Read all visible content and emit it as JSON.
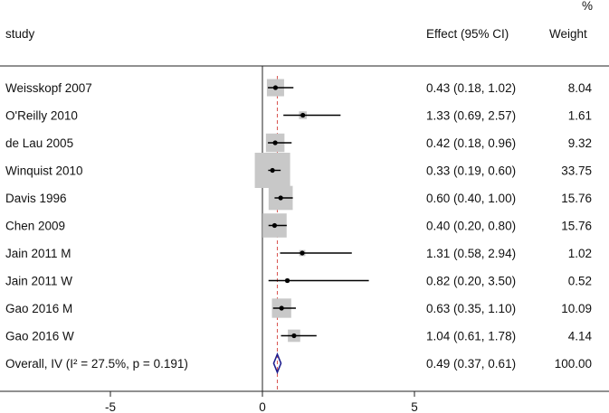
{
  "chart_data": {
    "type": "forest",
    "header": {
      "study": "study",
      "effect": "Effect (95% CI)",
      "weight_pct": "%",
      "weight": "Weight"
    },
    "studies": [
      {
        "label": "Weisskopf 2007",
        "effect": 0.43,
        "ci_low": 0.18,
        "ci_high": 1.02,
        "effect_text": "0.43 (0.18, 1.02)",
        "weight": 8.04,
        "weight_text": "8.04"
      },
      {
        "label": "O'Reilly 2010",
        "effect": 1.33,
        "ci_low": 0.69,
        "ci_high": 2.57,
        "effect_text": "1.33 (0.69, 2.57)",
        "weight": 1.61,
        "weight_text": "1.61"
      },
      {
        "label": "de Lau 2005",
        "effect": 0.42,
        "ci_low": 0.18,
        "ci_high": 0.96,
        "effect_text": "0.42 (0.18, 0.96)",
        "weight": 9.32,
        "weight_text": "9.32"
      },
      {
        "label": "Winquist 2010",
        "effect": 0.33,
        "ci_low": 0.19,
        "ci_high": 0.6,
        "effect_text": "0.33 (0.19, 0.60)",
        "weight": 33.75,
        "weight_text": "33.75"
      },
      {
        "label": "Davis 1996",
        "effect": 0.6,
        "ci_low": 0.4,
        "ci_high": 1.0,
        "effect_text": "0.60 (0.40, 1.00)",
        "weight": 15.76,
        "weight_text": "15.76"
      },
      {
        "label": "Chen 2009",
        "effect": 0.4,
        "ci_low": 0.2,
        "ci_high": 0.8,
        "effect_text": "0.40 (0.20, 0.80)",
        "weight": 15.76,
        "weight_text": "15.76"
      },
      {
        "label": "Jain 2011 M",
        "effect": 1.31,
        "ci_low": 0.58,
        "ci_high": 2.94,
        "effect_text": "1.31 (0.58, 2.94)",
        "weight": 1.02,
        "weight_text": "1.02"
      },
      {
        "label": "Jain 2011 W",
        "effect": 0.82,
        "ci_low": 0.2,
        "ci_high": 3.5,
        "effect_text": "0.82 (0.20, 3.50)",
        "weight": 0.52,
        "weight_text": "0.52"
      },
      {
        "label": "Gao 2016 M",
        "effect": 0.63,
        "ci_low": 0.35,
        "ci_high": 1.1,
        "effect_text": "0.63 (0.35, 1.10)",
        "weight": 10.09,
        "weight_text": "10.09"
      },
      {
        "label": "Gao 2016 W",
        "effect": 1.04,
        "ci_low": 0.61,
        "ci_high": 1.78,
        "effect_text": "1.04 (0.61, 1.78)",
        "weight": 4.14,
        "weight_text": "4.14"
      }
    ],
    "overall": {
      "label": "Overall, IV (I² = 27.5%, p = 0.191)",
      "effect": 0.49,
      "ci_low": 0.37,
      "ci_high": 0.61,
      "effect_text": "0.49 (0.37, 0.61)",
      "weight_text": "100.00"
    },
    "x_axis": {
      "ticks": [
        -5,
        0,
        5
      ],
      "tick_labels": [
        "-5",
        "0",
        "5"
      ],
      "xlim": [
        -8.7,
        11.2
      ]
    },
    "reference_line": 0,
    "colors": {
      "box": "#c8c8c8",
      "ci_line": "#000000",
      "overall_diamond": "#1f1f8f",
      "overall_line": "#d9534f"
    }
  }
}
